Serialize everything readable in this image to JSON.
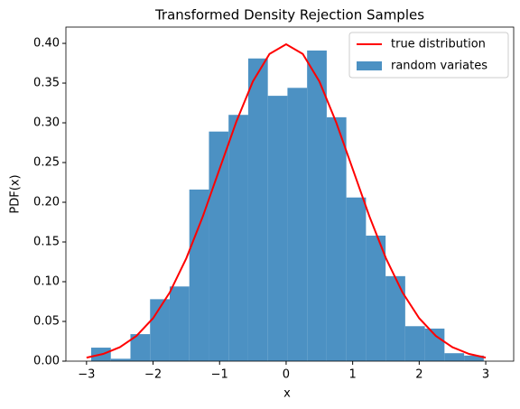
{
  "chart_data": {
    "type": "histogram",
    "title": "Transformed Density Rejection Samples",
    "xlabel": "x",
    "ylabel": "PDF(x)",
    "xlim": [
      -3.31,
      3.42
    ],
    "ylim": [
      0,
      0.4205
    ],
    "xticks": [
      {
        "value": -3,
        "label": "−3"
      },
      {
        "value": -2,
        "label": "−2"
      },
      {
        "value": -1,
        "label": "−1"
      },
      0,
      1,
      2,
      3
    ],
    "yticks": [
      {
        "value": 0,
        "label": "0.00"
      },
      0.05,
      {
        "value": 0.1,
        "label": "0.10"
      },
      0.15,
      {
        "value": 0.2,
        "label": "0.20"
      },
      0.25,
      {
        "value": 0.3,
        "label": "0.30"
      },
      0.35,
      {
        "value": 0.4,
        "label": "0.40"
      }
    ],
    "legend": "upper right",
    "series": [
      {
        "name": "true distribution",
        "type": "line",
        "color": "#ff0000",
        "x": [
          -3,
          -2.75,
          -2.5,
          -2.25,
          -2,
          -1.75,
          -1.5,
          -1.25,
          -1,
          -0.75,
          -0.5,
          -0.25,
          0,
          0.25,
          0.5,
          0.75,
          1,
          1.25,
          1.5,
          1.75,
          2,
          2.25,
          2.5,
          2.75,
          3
        ],
        "values": [
          0.0044,
          0.0091,
          0.0175,
          0.0317,
          0.054,
          0.0863,
          0.1295,
          0.1826,
          0.242,
          0.3011,
          0.3521,
          0.3867,
          0.3989,
          0.3867,
          0.3521,
          0.3011,
          0.242,
          0.1826,
          0.1295,
          0.0863,
          0.054,
          0.0317,
          0.0175,
          0.0091,
          0.0044
        ]
      },
      {
        "name": "random variates",
        "type": "histogram",
        "color": "#4c91c3",
        "bins": [
          -2.93,
          -2.635,
          -2.34,
          -2.045,
          -1.75,
          -1.455,
          -1.16,
          -0.865,
          -0.57,
          -0.275,
          0.02,
          0.315,
          0.61,
          0.905,
          1.2,
          1.495,
          1.79,
          2.085,
          2.38,
          2.675,
          2.97
        ],
        "values": [
          0.017,
          0.003,
          0.034,
          0.078,
          0.094,
          0.216,
          0.289,
          0.31,
          0.381,
          0.334,
          0.344,
          0.391,
          0.307,
          0.206,
          0.158,
          0.107,
          0.044,
          0.041,
          0.01,
          0.007
        ]
      }
    ]
  }
}
